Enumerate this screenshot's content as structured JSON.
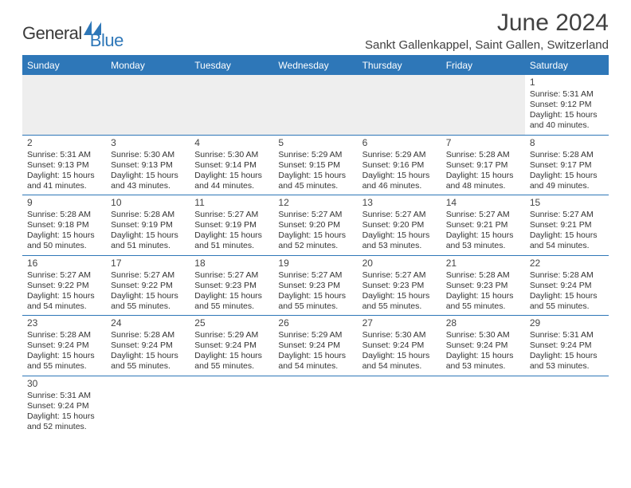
{
  "brand": {
    "word1": "General",
    "word2": "Blue"
  },
  "colors": {
    "accent": "#2e77b8",
    "header_bg": "#2e77b8",
    "header_text": "#ffffff",
    "text": "#333333",
    "grey_bg": "#eeeeee"
  },
  "title": "June 2024",
  "location": "Sankt Gallenkappel, Saint Gallen, Switzerland",
  "day_headers": [
    "Sunday",
    "Monday",
    "Tuesday",
    "Wednesday",
    "Thursday",
    "Friday",
    "Saturday"
  ],
  "weeks": [
    [
      null,
      null,
      null,
      null,
      null,
      null,
      {
        "n": "1",
        "sunrise": "5:31 AM",
        "sunset": "9:12 PM",
        "dl_h": "15",
        "dl_m": "40"
      }
    ],
    [
      {
        "n": "2",
        "sunrise": "5:31 AM",
        "sunset": "9:13 PM",
        "dl_h": "15",
        "dl_m": "41"
      },
      {
        "n": "3",
        "sunrise": "5:30 AM",
        "sunset": "9:13 PM",
        "dl_h": "15",
        "dl_m": "43"
      },
      {
        "n": "4",
        "sunrise": "5:30 AM",
        "sunset": "9:14 PM",
        "dl_h": "15",
        "dl_m": "44"
      },
      {
        "n": "5",
        "sunrise": "5:29 AM",
        "sunset": "9:15 PM",
        "dl_h": "15",
        "dl_m": "45"
      },
      {
        "n": "6",
        "sunrise": "5:29 AM",
        "sunset": "9:16 PM",
        "dl_h": "15",
        "dl_m": "46"
      },
      {
        "n": "7",
        "sunrise": "5:28 AM",
        "sunset": "9:17 PM",
        "dl_h": "15",
        "dl_m": "48"
      },
      {
        "n": "8",
        "sunrise": "5:28 AM",
        "sunset": "9:17 PM",
        "dl_h": "15",
        "dl_m": "49"
      }
    ],
    [
      {
        "n": "9",
        "sunrise": "5:28 AM",
        "sunset": "9:18 PM",
        "dl_h": "15",
        "dl_m": "50"
      },
      {
        "n": "10",
        "sunrise": "5:28 AM",
        "sunset": "9:19 PM",
        "dl_h": "15",
        "dl_m": "51"
      },
      {
        "n": "11",
        "sunrise": "5:27 AM",
        "sunset": "9:19 PM",
        "dl_h": "15",
        "dl_m": "51"
      },
      {
        "n": "12",
        "sunrise": "5:27 AM",
        "sunset": "9:20 PM",
        "dl_h": "15",
        "dl_m": "52"
      },
      {
        "n": "13",
        "sunrise": "5:27 AM",
        "sunset": "9:20 PM",
        "dl_h": "15",
        "dl_m": "53"
      },
      {
        "n": "14",
        "sunrise": "5:27 AM",
        "sunset": "9:21 PM",
        "dl_h": "15",
        "dl_m": "53"
      },
      {
        "n": "15",
        "sunrise": "5:27 AM",
        "sunset": "9:21 PM",
        "dl_h": "15",
        "dl_m": "54"
      }
    ],
    [
      {
        "n": "16",
        "sunrise": "5:27 AM",
        "sunset": "9:22 PM",
        "dl_h": "15",
        "dl_m": "54"
      },
      {
        "n": "17",
        "sunrise": "5:27 AM",
        "sunset": "9:22 PM",
        "dl_h": "15",
        "dl_m": "55"
      },
      {
        "n": "18",
        "sunrise": "5:27 AM",
        "sunset": "9:23 PM",
        "dl_h": "15",
        "dl_m": "55"
      },
      {
        "n": "19",
        "sunrise": "5:27 AM",
        "sunset": "9:23 PM",
        "dl_h": "15",
        "dl_m": "55"
      },
      {
        "n": "20",
        "sunrise": "5:27 AM",
        "sunset": "9:23 PM",
        "dl_h": "15",
        "dl_m": "55"
      },
      {
        "n": "21",
        "sunrise": "5:28 AM",
        "sunset": "9:23 PM",
        "dl_h": "15",
        "dl_m": "55"
      },
      {
        "n": "22",
        "sunrise": "5:28 AM",
        "sunset": "9:24 PM",
        "dl_h": "15",
        "dl_m": "55"
      }
    ],
    [
      {
        "n": "23",
        "sunrise": "5:28 AM",
        "sunset": "9:24 PM",
        "dl_h": "15",
        "dl_m": "55"
      },
      {
        "n": "24",
        "sunrise": "5:28 AM",
        "sunset": "9:24 PM",
        "dl_h": "15",
        "dl_m": "55"
      },
      {
        "n": "25",
        "sunrise": "5:29 AM",
        "sunset": "9:24 PM",
        "dl_h": "15",
        "dl_m": "55"
      },
      {
        "n": "26",
        "sunrise": "5:29 AM",
        "sunset": "9:24 PM",
        "dl_h": "15",
        "dl_m": "54"
      },
      {
        "n": "27",
        "sunrise": "5:30 AM",
        "sunset": "9:24 PM",
        "dl_h": "15",
        "dl_m": "54"
      },
      {
        "n": "28",
        "sunrise": "5:30 AM",
        "sunset": "9:24 PM",
        "dl_h": "15",
        "dl_m": "53"
      },
      {
        "n": "29",
        "sunrise": "5:31 AM",
        "sunset": "9:24 PM",
        "dl_h": "15",
        "dl_m": "53"
      }
    ],
    [
      {
        "n": "30",
        "sunrise": "5:31 AM",
        "sunset": "9:24 PM",
        "dl_h": "15",
        "dl_m": "52"
      },
      null,
      null,
      null,
      null,
      null,
      null
    ]
  ],
  "labels": {
    "sunrise_prefix": "Sunrise: ",
    "sunset_prefix": "Sunset: ",
    "daylight_prefix": "Daylight: ",
    "hours_word": " hours",
    "and_word": "and ",
    "minutes_word": " minutes."
  }
}
